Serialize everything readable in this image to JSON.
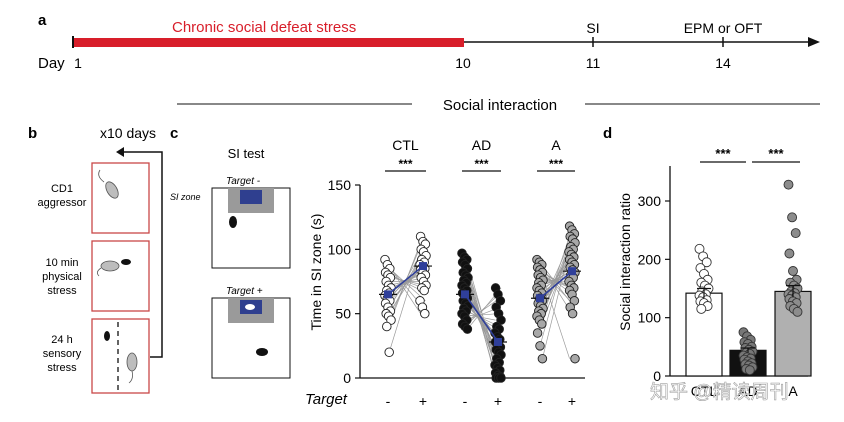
{
  "timeline": {
    "panel": "a",
    "stress_label": "Chronic social defeat stress",
    "day_label": "Day",
    "day1": "1",
    "day10": "10",
    "day11": "11",
    "day14": "14",
    "si": "SI",
    "epm": "EPM or OFT"
  },
  "panel_b": {
    "panel": "b",
    "repeat": "x10 days",
    "box1": [
      "CD1",
      "aggressor"
    ],
    "box2": [
      "10 min",
      "physical",
      "stress"
    ],
    "box3": [
      "24 h",
      "sensory",
      "stress"
    ]
  },
  "panel_c": {
    "panel": "c",
    "header": "Social interaction",
    "si_test": "SI test",
    "target_minus": "Target -",
    "target_plus": "Target +",
    "si_zone": "SI zone",
    "stars": "***"
  },
  "panel_d": {
    "panel": "d",
    "stars1": "***",
    "stars2": "***"
  },
  "watermark": "知乎 @精读周刊",
  "chart_data": [
    {
      "type": "scatter",
      "ylabel": "Time in SI zone (s)",
      "xlabel": "Target",
      "ylim": [
        0,
        150
      ],
      "yticks": [
        0,
        50,
        100,
        150
      ],
      "groups": [
        "CTL",
        "AD",
        "A"
      ],
      "conditions": [
        "-",
        "+"
      ],
      "series": [
        {
          "group": "CTL",
          "fill": "#ffffff",
          "minus": [
            92,
            88,
            85,
            82,
            80,
            78,
            75,
            72,
            70,
            68,
            66,
            64,
            62,
            60,
            58,
            55,
            52,
            50,
            48,
            45,
            40,
            20
          ],
          "plus": [
            110,
            106,
            104,
            100,
            98,
            95,
            92,
            90,
            88,
            86,
            85,
            84,
            82,
            80,
            78,
            75,
            72,
            70,
            68,
            60,
            55,
            50
          ],
          "mean_minus": 65,
          "mean_plus": 87
        },
        {
          "group": "AD",
          "fill": "#111111",
          "minus": [
            97,
            94,
            92,
            90,
            88,
            85,
            82,
            80,
            78,
            76,
            74,
            72,
            70,
            68,
            66,
            64,
            62,
            60,
            58,
            56,
            54,
            52,
            50,
            48,
            45,
            42,
            40,
            38
          ],
          "plus": [
            70,
            65,
            60,
            55,
            50,
            45,
            40,
            38,
            35,
            32,
            30,
            28,
            26,
            24,
            22,
            20,
            18,
            15,
            12,
            10,
            8,
            6,
            4,
            2,
            1,
            0,
            0,
            0
          ],
          "mean_minus": 65,
          "mean_plus": 28
        },
        {
          "group": "A",
          "fill": "#a8a8a8",
          "minus": [
            92,
            90,
            88,
            86,
            84,
            82,
            80,
            78,
            76,
            74,
            72,
            70,
            68,
            66,
            64,
            62,
            60,
            58,
            56,
            54,
            52,
            50,
            48,
            45,
            42,
            35,
            25,
            15
          ],
          "plus": [
            118,
            115,
            112,
            110,
            108,
            105,
            102,
            100,
            98,
            96,
            94,
            92,
            90,
            88,
            86,
            84,
            82,
            80,
            78,
            75,
            72,
            70,
            68,
            65,
            60,
            55,
            50,
            15
          ],
          "mean_minus": 62,
          "mean_plus": 83
        }
      ]
    },
    {
      "type": "bar",
      "ylabel": "Social interaction ratio",
      "categories": [
        "CTL",
        "AD",
        "A"
      ],
      "values": [
        142,
        44,
        145
      ],
      "errors": [
        8,
        4,
        10
      ],
      "colors": [
        "#ffffff",
        "#111111",
        "#b0b0b0"
      ],
      "ylim": [
        0,
        360
      ],
      "yticks": [
        0,
        100,
        200,
        300
      ],
      "points": [
        [
          218,
          205,
          195,
          185,
          175,
          165,
          160,
          155,
          150,
          145,
          140,
          138,
          135,
          130,
          128,
          125,
          120,
          115
        ],
        [
          75,
          68,
          62,
          58,
          55,
          50,
          48,
          45,
          42,
          40,
          38,
          35,
          32,
          30,
          28,
          25,
          22,
          20,
          18,
          15,
          12,
          10
        ],
        [
          328,
          272,
          245,
          210,
          180,
          165,
          160,
          155,
          150,
          145,
          142,
          140,
          138,
          135,
          132,
          128,
          125,
          120,
          115,
          110
        ]
      ]
    }
  ]
}
